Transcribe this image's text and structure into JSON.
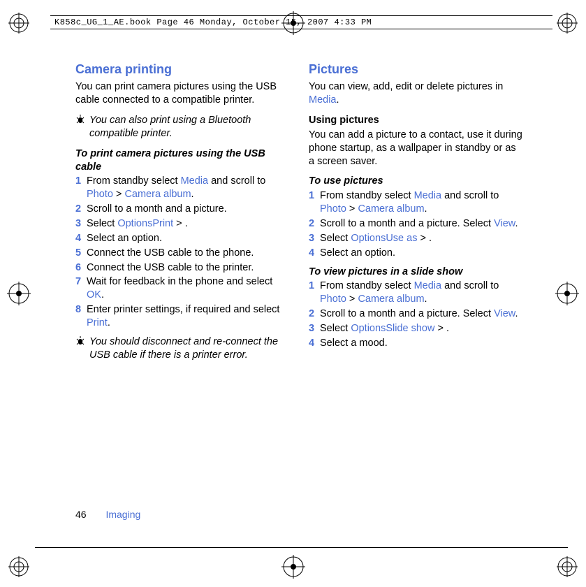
{
  "colors": {
    "link": "#4a6fd4",
    "text": "#000000",
    "background": "#ffffff"
  },
  "typography": {
    "body_family": "Arial, Helvetica, sans-serif",
    "body_size_pt": 11,
    "heading_size_pt": 14,
    "mono_family": "Courier New"
  },
  "header": {
    "text": "K858c_UG_1_AE.book  Page 46  Monday, October 15, 2007  4:33 PM"
  },
  "left": {
    "heading": "Camera printing",
    "intro": "You can print camera pictures using the USB cable connected to a compatible printer.",
    "tip1": "You can also print using a Bluetooth compatible printer.",
    "subhead": "To print camera pictures using the USB cable",
    "steps": [
      {
        "n": "1",
        "pre": "From standby select ",
        "a": "Media",
        "mid": " and scroll to ",
        "b": "Photo",
        "gt": " > ",
        "c": "Camera album",
        "post": "."
      },
      {
        "n": "2",
        "pre": "Scroll to a month and a picture."
      },
      {
        "n": "3",
        "pre": "Select ",
        "a": "Options",
        "gt": " > ",
        "b": "Print",
        "post": "."
      },
      {
        "n": "4",
        "pre": "Select an option."
      },
      {
        "n": "5",
        "pre": "Connect the USB cable to the phone."
      },
      {
        "n": "6",
        "pre": "Connect the USB cable to the printer."
      },
      {
        "n": "7",
        "pre": "Wait for feedback in the phone and select ",
        "a": "OK",
        "post": "."
      },
      {
        "n": "8",
        "pre": "Enter printer settings, if required and select ",
        "a": "Print",
        "post": "."
      }
    ],
    "tip2": "You should disconnect and re-connect the USB cable if there is a printer error."
  },
  "right": {
    "heading": "Pictures",
    "intro_pre": "You can view, add, edit or delete pictures in ",
    "intro_link": "Media",
    "intro_post": ".",
    "using_heading": "Using pictures",
    "using_body": "You can add a picture to a contact, use it during phone startup, as a wallpaper in standby or as a screen saver.",
    "subhead1": "To use pictures",
    "steps1": [
      {
        "n": "1",
        "pre": "From standby select ",
        "a": "Media",
        "mid": " and scroll to ",
        "b": "Photo",
        "gt": " > ",
        "c": "Camera album",
        "post": "."
      },
      {
        "n": "2",
        "pre": "Scroll to a month and a picture. Select ",
        "a": "View",
        "post": "."
      },
      {
        "n": "3",
        "pre": "Select ",
        "a": "Options",
        "gt": " > ",
        "b": "Use as",
        "post": "."
      },
      {
        "n": "4",
        "pre": "Select an option."
      }
    ],
    "subhead2": "To view pictures in a slide show",
    "steps2": [
      {
        "n": "1",
        "pre": "From standby select ",
        "a": "Media",
        "mid": " and scroll to ",
        "b": "Photo",
        "gt": " > ",
        "c": "Camera album",
        "post": "."
      },
      {
        "n": "2",
        "pre": "Scroll to a month and a picture. Select ",
        "a": "View",
        "post": "."
      },
      {
        "n": "3",
        "pre": "Select ",
        "a": "Options",
        "gt": " > ",
        "b": "Slide show",
        "post": "."
      },
      {
        "n": "4",
        "pre": "Select a mood."
      }
    ]
  },
  "footer": {
    "page": "46",
    "section": "Imaging"
  }
}
